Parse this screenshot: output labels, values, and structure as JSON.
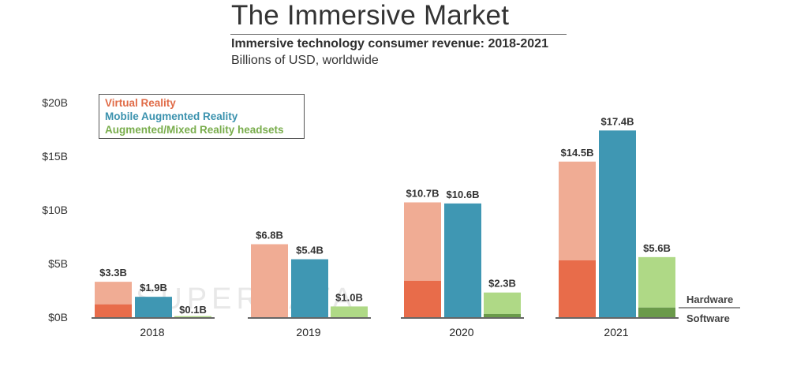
{
  "header": {
    "title": "The Immersive Market",
    "subtitle": "Immersive technology consumer revenue: 2018-2021",
    "unit": "Billions of USD, worldwide"
  },
  "colors": {
    "vr_hardware": "#e86c4a",
    "vr_software": "#f0ac94",
    "mar": "#3f97b3",
    "ar_hardware": "#6a9a4a",
    "ar_software": "#afd986",
    "legend_vr": "#e06b47",
    "legend_mar": "#3b92ae",
    "legend_ar": "#79ad4c",
    "axis_text": "#333333"
  },
  "watermark": "SUPERDATA",
  "chart_data": {
    "type": "bar",
    "title": "Immersive technology consumer revenue: 2018-2021",
    "xlabel": "",
    "ylabel": "Billions of USD, worldwide",
    "ylim": [
      0,
      20
    ],
    "y_ticks": [
      0,
      5,
      10,
      15,
      20
    ],
    "y_tick_labels": [
      "$0B",
      "$5B",
      "$10B",
      "$15B",
      "$20B"
    ],
    "categories": [
      "2018",
      "2019",
      "2020",
      "2021"
    ],
    "legend_position": "top-left",
    "series": [
      {
        "name": "Virtual Reality",
        "values": [
          3.3,
          6.8,
          10.7,
          14.5
        ],
        "labels": [
          "$3.3B",
          "$6.8B",
          "$10.7B",
          "$14.5B"
        ],
        "hardware": [
          1.2,
          0.0,
          3.4,
          5.3
        ]
      },
      {
        "name": "Mobile Augmented Reality",
        "values": [
          1.9,
          5.4,
          10.6,
          17.4
        ],
        "labels": [
          "$1.9B",
          "$5.4B",
          "$10.6B",
          "$17.4B"
        ],
        "hardware": [
          0,
          0,
          0,
          0
        ]
      },
      {
        "name": "Augmented/Mixed Reality headsets",
        "values": [
          0.1,
          1.0,
          2.3,
          5.6
        ],
        "labels": [
          "$0.1B",
          "$1.0B",
          "$2.3B",
          "$5.6B"
        ],
        "hardware": [
          0.0,
          0.0,
          0.3,
          0.9
        ]
      }
    ],
    "stack_labels": {
      "upper": "Hardware",
      "lower": "Software"
    }
  }
}
